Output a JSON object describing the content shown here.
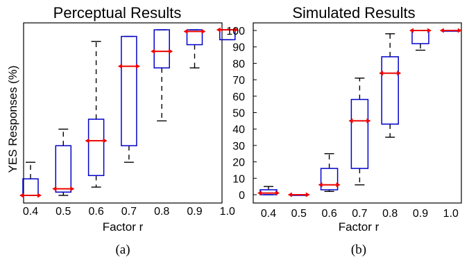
{
  "chart_data": [
    {
      "type": "box",
      "title": "Perceptual Results",
      "xlabel": "Factor r",
      "ylabel": "YES Responses (%)",
      "caption": "(a)",
      "categories": [
        "0.4",
        "0.5",
        "0.6",
        "0.7",
        "0.8",
        "0.9",
        "1.0"
      ],
      "ylim": [
        0,
        100
      ],
      "yticks": [],
      "grid": false,
      "boxes": [
        {
          "min": 0,
          "q1": 0,
          "median": 0,
          "q3": 10,
          "max": 20
        },
        {
          "min": 0,
          "q1": 2,
          "median": 4,
          "q3": 30,
          "max": 40
        },
        {
          "min": 5,
          "q1": 12,
          "median": 33,
          "q3": 46,
          "max": 93
        },
        {
          "min": 20,
          "q1": 30,
          "median": 78,
          "q3": 96,
          "max": 96
        },
        {
          "min": 45,
          "q1": 77,
          "median": 87,
          "q3": 100,
          "max": 100
        },
        {
          "min": 77,
          "q1": 91,
          "median": 99,
          "q3": 100,
          "max": 100
        },
        {
          "min": 94,
          "q1": 94,
          "median": 100,
          "q3": 100,
          "max": 100
        }
      ],
      "colors": {
        "box": "#0000cc",
        "median": "#ee0000",
        "whisker": "#000000"
      }
    },
    {
      "type": "box",
      "title": "Simulated Results",
      "xlabel": "Factor r",
      "ylabel": "",
      "caption": "(b)",
      "categories": [
        "0.4",
        "0.5",
        "0.6",
        "0.7",
        "0.8",
        "0.9",
        "1.0"
      ],
      "ylim": [
        0,
        100
      ],
      "yticks": [
        "0",
        "10",
        "20",
        "30",
        "40",
        "50",
        "60",
        "70",
        "80",
        "90",
        "100"
      ],
      "grid": false,
      "boxes": [
        {
          "min": 0,
          "q1": 0,
          "median": 1,
          "q3": 3,
          "max": 5
        },
        {
          "min": 0,
          "q1": 0,
          "median": 0,
          "q3": 0,
          "max": 0
        },
        {
          "min": 2,
          "q1": 3,
          "median": 6,
          "q3": 16,
          "max": 25
        },
        {
          "min": 6,
          "q1": 16,
          "median": 45,
          "q3": 58,
          "max": 71
        },
        {
          "min": 35,
          "q1": 43,
          "median": 74,
          "q3": 84,
          "max": 98
        },
        {
          "min": 88,
          "q1": 92,
          "median": 100,
          "q3": 100,
          "max": 100
        },
        {
          "min": 100,
          "q1": 100,
          "median": 100,
          "q3": 100,
          "max": 100
        }
      ],
      "colors": {
        "box": "#0000cc",
        "median": "#ee0000",
        "whisker": "#000000"
      }
    }
  ]
}
